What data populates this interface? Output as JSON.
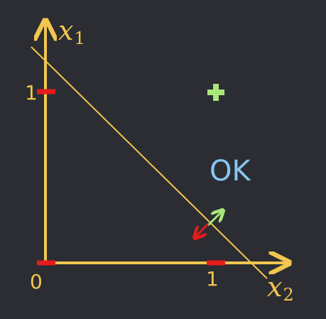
{
  "diagram": {
    "x1_label": {
      "var": "x",
      "sub": "1"
    },
    "x2_label": {
      "var": "x",
      "sub": "2"
    },
    "tick_origin": "0",
    "tick_x1": "1",
    "tick_x2": "1",
    "ok_label": "OK",
    "plus_symbol": "+",
    "colors": {
      "background": "#2b2d33",
      "axis": "#f2c64f",
      "line": "#f2c64f",
      "tick_mark": "#e51b1b",
      "ok_text": "#86c6f2",
      "plus": "#a9e77a",
      "arrow_green": "#a9e77a",
      "arrow_red": "#e51b1b"
    }
  }
}
